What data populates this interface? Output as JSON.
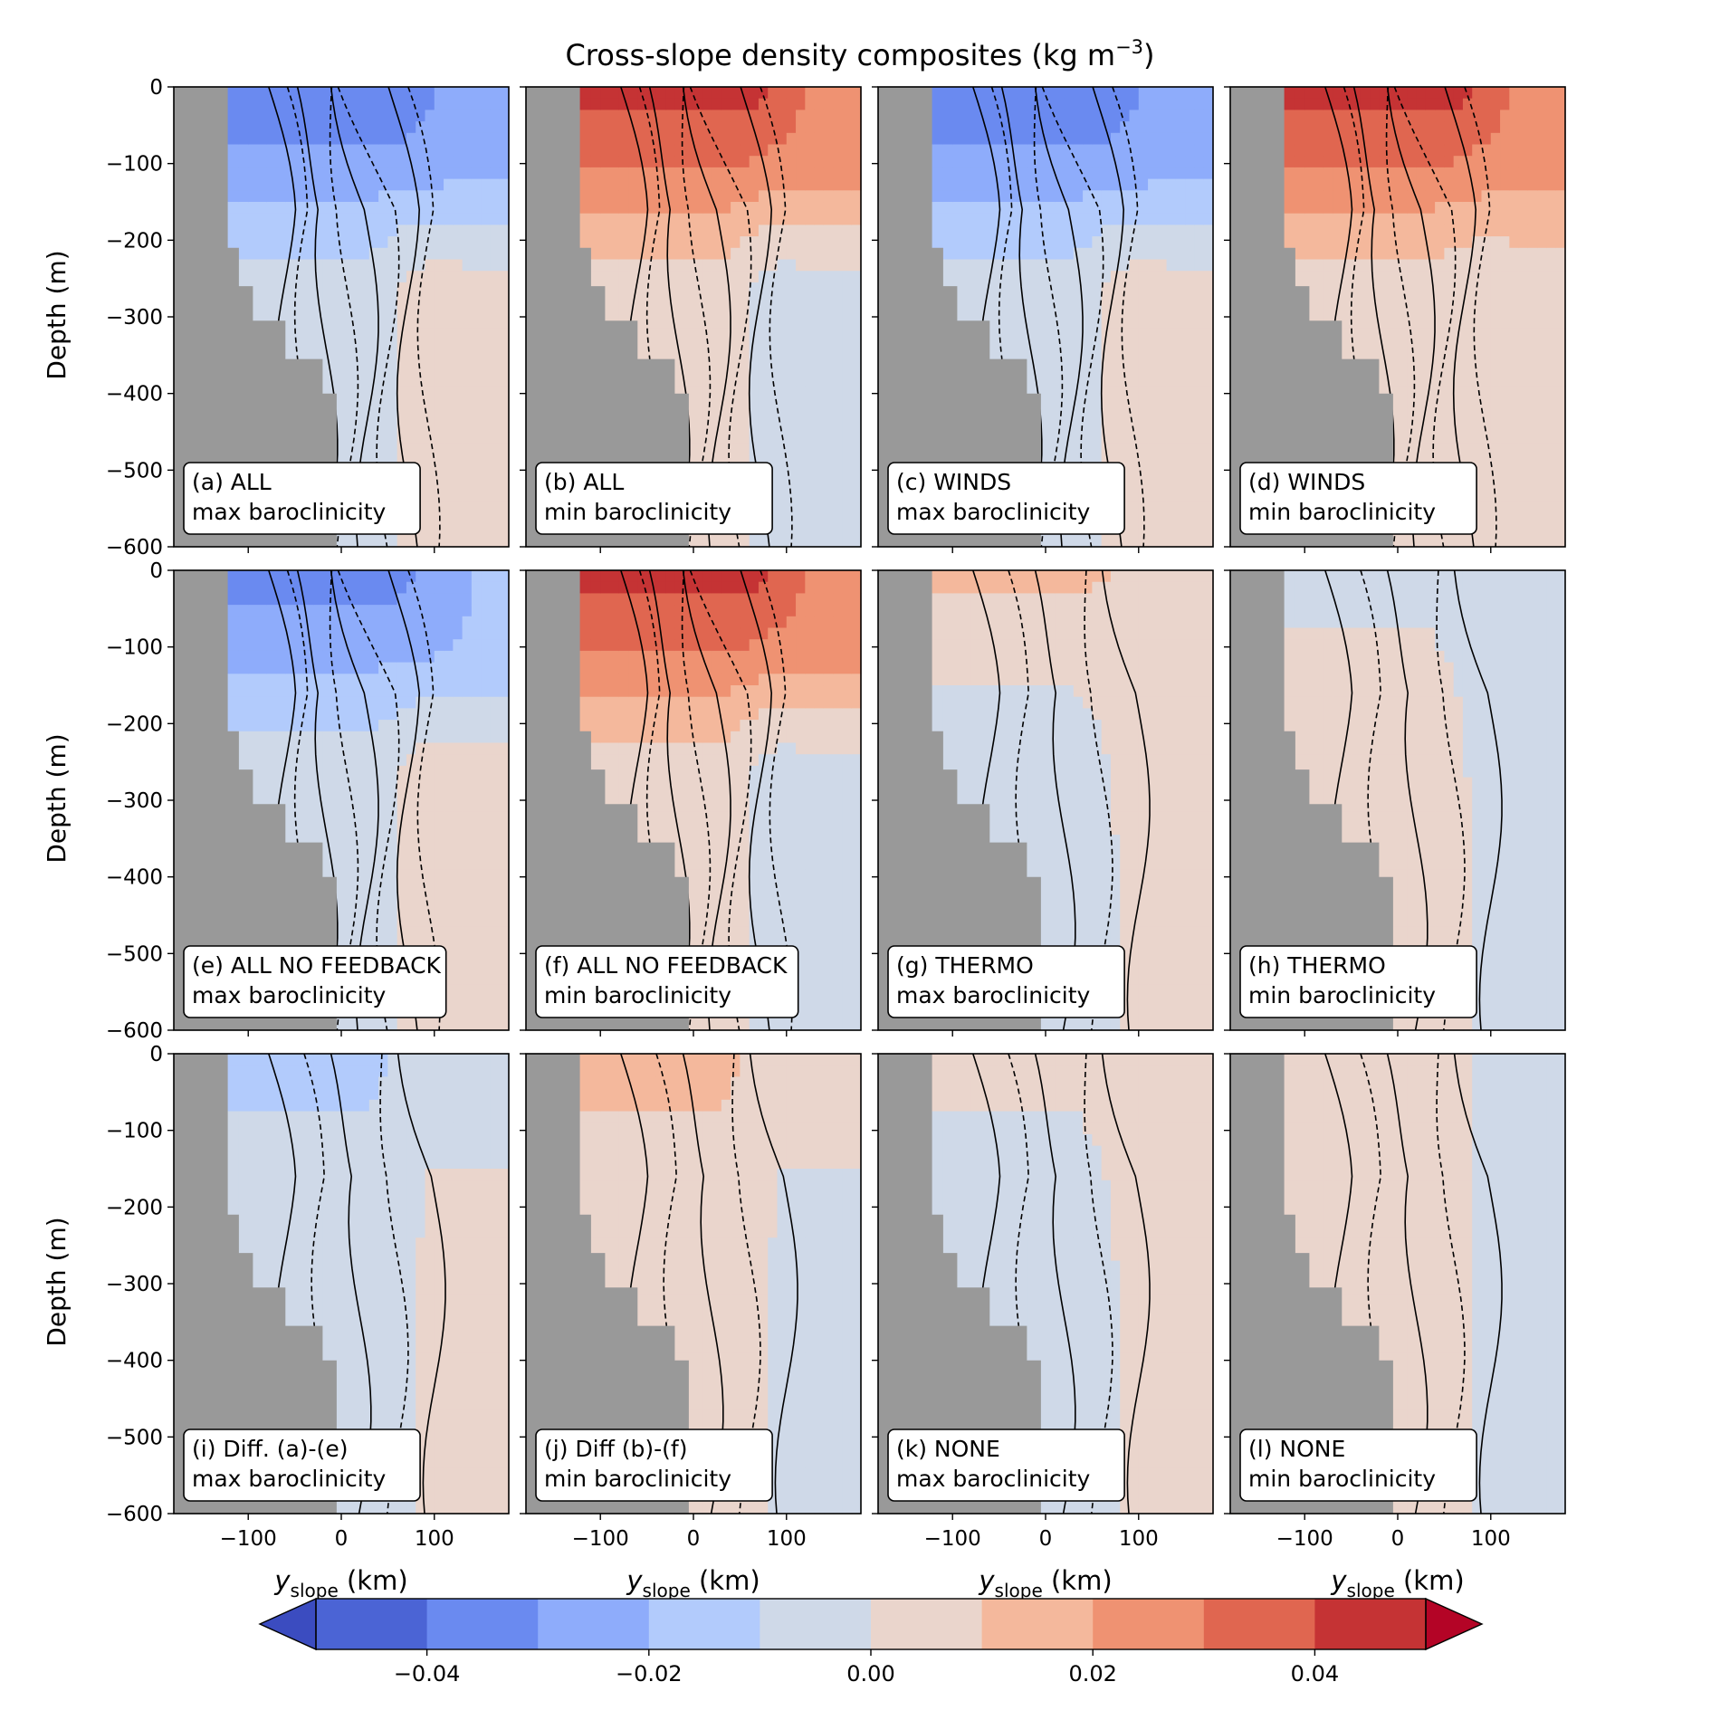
{
  "title": "Cross-slope density composites (kg m",
  "title_sup": "−3",
  "title_close": ")",
  "ylabel": "Depth (m)",
  "xlabel_var": "y",
  "xlabel_sub": "slope",
  "xlabel_unit": " (km)",
  "chart_data": {
    "type": "heatmap",
    "title": "Cross-slope density composites (kg m−3)",
    "xlabel": "y_slope (km)",
    "ylabel": "Depth (m)",
    "xlim": [
      -180,
      180
    ],
    "ylim": [
      -600,
      0
    ],
    "x_ticks": [
      -100,
      0,
      100
    ],
    "y_ticks": [
      0,
      -100,
      -200,
      -300,
      -400,
      -500,
      -600
    ],
    "y_tick_labels": [
      "0",
      "−100",
      "−200",
      "−300",
      "−400",
      "−500",
      "−600"
    ],
    "x_tick_labels": [
      "−100",
      "0",
      "100"
    ],
    "colorbar": {
      "levels": [
        -0.05,
        -0.04,
        -0.03,
        -0.02,
        -0.01,
        0.0,
        0.01,
        0.02,
        0.03,
        0.04,
        0.05
      ],
      "colors": [
        "#3b4cc0",
        "#4b64d5",
        "#6a8af0",
        "#8eacfb",
        "#b2cbfc",
        "#cfd9e8",
        "#ead5cc",
        "#f4b89c",
        "#ef9272",
        "#e06650",
        "#c53334",
        "#b40426"
      ],
      "ticks": [
        -0.04,
        -0.02,
        0.0,
        0.02,
        0.04
      ],
      "tick_labels": [
        "−0.04",
        "−0.02",
        "0.00",
        "0.02",
        "0.04"
      ],
      "extend": "both"
    },
    "bathymetry_steps": [
      {
        "x": -122,
        "depth": -210
      },
      {
        "x": -110,
        "depth": -260
      },
      {
        "x": -95,
        "depth": -305
      },
      {
        "x": -60,
        "depth": -355
      },
      {
        "x": -20,
        "depth": -400
      },
      {
        "x": -5,
        "depth": -600
      }
    ],
    "panels": [
      {
        "id": "a",
        "label_line1": "(a) ALL",
        "label_line2": "max baroclinicity",
        "regime": "max",
        "surface_anomaly": -0.04,
        "deep_anomaly": -0.005,
        "offshore_anomaly": 0.005
      },
      {
        "id": "b",
        "label_line1": "(b) ALL",
        "label_line2": "min baroclinicity",
        "regime": "min",
        "surface_anomaly": 0.045,
        "deep_anomaly": 0.005,
        "offshore_anomaly": -0.005
      },
      {
        "id": "c",
        "label_line1": "(c) WINDS",
        "label_line2": "max baroclinicity",
        "regime": "max",
        "surface_anomaly": -0.04,
        "deep_anomaly": -0.005,
        "offshore_anomaly": 0.005
      },
      {
        "id": "d",
        "label_line1": "(d) WINDS",
        "label_line2": "min baroclinicity",
        "regime": "min",
        "surface_anomaly": 0.045,
        "deep_anomaly": 0.005,
        "offshore_anomaly": 0.005
      },
      {
        "id": "e",
        "label_line1": "(e) ALL NO FEEDBACK",
        "label_line2": "max baroclinicity",
        "regime": "max",
        "surface_anomaly": -0.035,
        "deep_anomaly": -0.005,
        "offshore_anomaly": 0.005
      },
      {
        "id": "f",
        "label_line1": "(f) ALL NO FEEDBACK",
        "label_line2": "min baroclinicity",
        "regime": "min",
        "surface_anomaly": 0.045,
        "deep_anomaly": 0.005,
        "offshore_anomaly": -0.005
      },
      {
        "id": "g",
        "label_line1": "(g) THERMO",
        "label_line2": "max baroclinicity",
        "regime": "weak",
        "surface_anomaly": 0.015,
        "deep_anomaly": -0.005,
        "offshore_anomaly": 0.005
      },
      {
        "id": "h",
        "label_line1": "(h) THERMO",
        "label_line2": "min baroclinicity",
        "regime": "weak",
        "surface_anomaly": -0.005,
        "deep_anomaly": 0.005,
        "offshore_anomaly": -0.005
      },
      {
        "id": "i",
        "label_line1": "(i) Diff. (a)-(e)",
        "label_line2": "max baroclinicity",
        "regime": "weak",
        "surface_anomaly": -0.015,
        "deep_anomaly": -0.005,
        "offshore_anomaly": 0.005
      },
      {
        "id": "j",
        "label_line1": "(j) Diff (b)-(f)",
        "label_line2": "min baroclinicity",
        "regime": "weak",
        "surface_anomaly": 0.015,
        "deep_anomaly": 0.005,
        "offshore_anomaly": -0.005
      },
      {
        "id": "k",
        "label_line1": "(k) NONE",
        "label_line2": "max baroclinicity",
        "regime": "weak",
        "surface_anomaly": 0.005,
        "deep_anomaly": -0.005,
        "offshore_anomaly": 0.005
      },
      {
        "id": "l",
        "label_line1": "(l) NONE",
        "label_line2": "min baroclinicity",
        "regime": "weak",
        "surface_anomaly": 0.005,
        "deep_anomaly": 0.005,
        "offshore_anomaly": -0.005
      }
    ]
  }
}
